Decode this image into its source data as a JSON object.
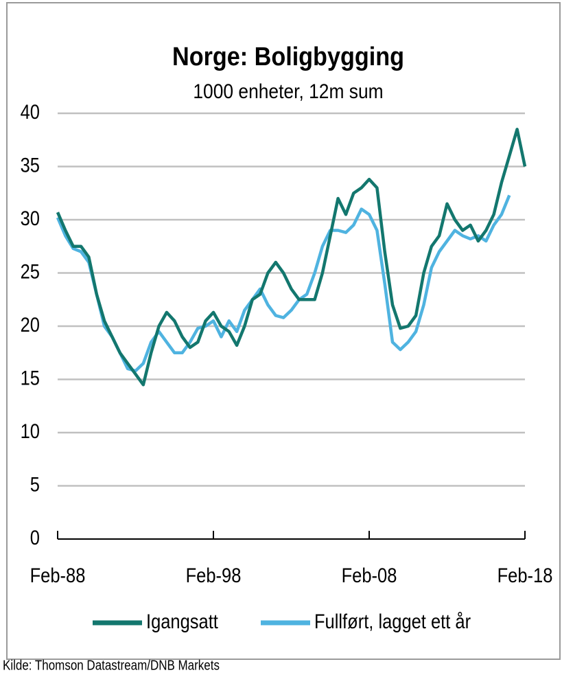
{
  "chart_data": {
    "type": "line",
    "title": "Norge: Boligbygging",
    "subtitle": "1000 enheter, 12m sum",
    "source": "Kilde: Thomson  Datastream/DNB  Markets",
    "x": [
      "1988-02",
      "1988-08",
      "1989-02",
      "1989-08",
      "1990-02",
      "1990-08",
      "1991-02",
      "1991-08",
      "1992-02",
      "1992-08",
      "1993-02",
      "1993-08",
      "1994-02",
      "1994-08",
      "1995-02",
      "1995-08",
      "1996-02",
      "1996-08",
      "1997-02",
      "1997-08",
      "1998-02",
      "1998-08",
      "1999-02",
      "1999-08",
      "2000-02",
      "2000-08",
      "2001-02",
      "2001-08",
      "2002-02",
      "2002-08",
      "2003-02",
      "2003-08",
      "2004-02",
      "2004-08",
      "2005-02",
      "2005-08",
      "2006-02",
      "2006-08",
      "2007-02",
      "2007-08",
      "2008-02",
      "2008-08",
      "2009-02",
      "2009-08",
      "2010-02",
      "2010-08",
      "2011-02",
      "2011-08",
      "2012-02",
      "2012-08",
      "2013-02",
      "2013-08",
      "2014-02",
      "2014-08",
      "2015-02",
      "2015-08",
      "2016-02",
      "2016-08",
      "2017-02",
      "2017-08",
      "2018-02"
    ],
    "series": [
      {
        "name": "Igangsatt",
        "color": "#13776e",
        "values": [
          30.7,
          29,
          27.5,
          27.5,
          26.5,
          23,
          20.5,
          19,
          17.5,
          16.5,
          15.5,
          14.5,
          17.5,
          20,
          21.3,
          20.5,
          19,
          18,
          18.5,
          20.5,
          21.3,
          20,
          19.5,
          18.2,
          20,
          22.5,
          23,
          25,
          26,
          25,
          23.5,
          22.5,
          22.5,
          22.5,
          25,
          28.5,
          32,
          30.5,
          32.5,
          33,
          33.8,
          33,
          27,
          22,
          19.8,
          20,
          21,
          25,
          27.5,
          28.5,
          31.5,
          30,
          29,
          29.5,
          28,
          29,
          30.5,
          33.5,
          36,
          38.5,
          35
        ]
      },
      {
        "name": "Fullført, lagget ett år",
        "color": "#4fb3e0",
        "values": [
          30.2,
          28.5,
          27.3,
          27,
          26,
          23,
          20,
          19,
          17.5,
          16,
          15.8,
          16.5,
          18.5,
          19.5,
          18.5,
          17.5,
          17.5,
          18.5,
          19.8,
          20,
          20.5,
          19,
          20.5,
          19.5,
          21.5,
          22.5,
          23.5,
          22,
          21,
          20.8,
          21.5,
          22.5,
          23,
          25,
          27.5,
          29,
          29,
          28.8,
          29.5,
          31,
          30.5,
          29,
          24,
          18.5,
          17.8,
          18.5,
          19.5,
          22,
          25.5,
          27,
          28,
          29,
          28.5,
          28.2,
          28.5,
          28,
          29.5,
          30.5,
          32.3,
          null,
          null
        ]
      }
    ],
    "xlim": [
      "1988-02",
      "2018-02"
    ],
    "xticks": [
      {
        "value": "1988-02",
        "label": "Feb-88"
      },
      {
        "value": "1998-02",
        "label": "Feb-98"
      },
      {
        "value": "2008-02",
        "label": "Feb-08"
      },
      {
        "value": "2018-02",
        "label": "Feb-18"
      }
    ],
    "ylim": [
      0,
      40
    ],
    "yticks": [
      0,
      5,
      10,
      15,
      20,
      25,
      30,
      35,
      40
    ],
    "grid": true,
    "legend": "bottom"
  }
}
